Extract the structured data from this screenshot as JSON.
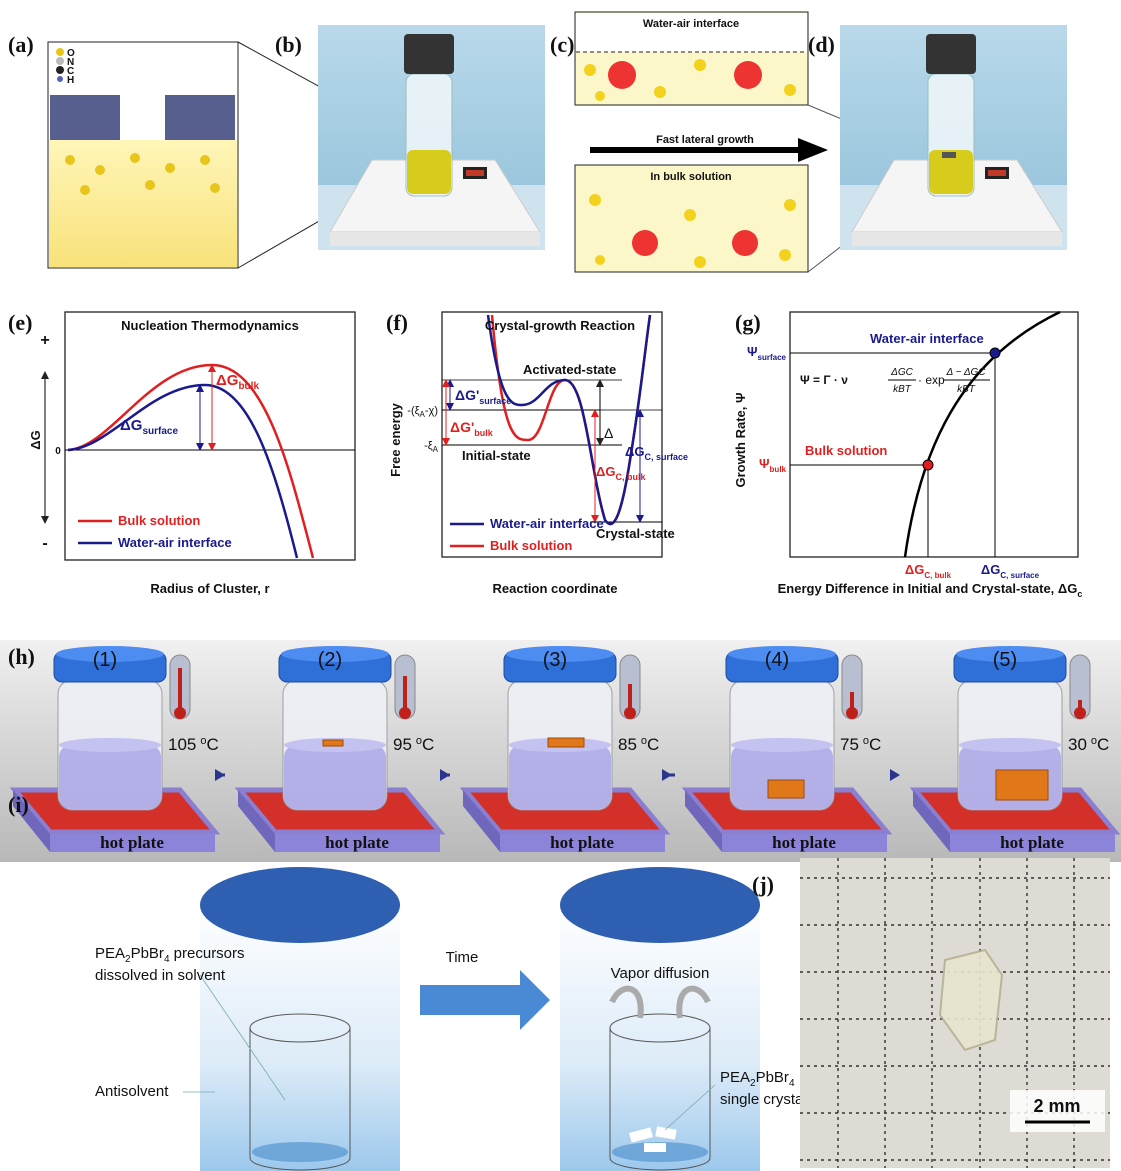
{
  "panels": {
    "a": {
      "label": "(a)",
      "legend": [
        "O",
        "N",
        "C",
        "H"
      ]
    },
    "b": {
      "label": "(b)"
    },
    "c": {
      "label": "(c)",
      "top": "Water-air interface",
      "arrow": "Fast lateral growth",
      "bottom": "In bulk solution"
    },
    "d": {
      "label": "(d)"
    },
    "e": {
      "label": "(e)",
      "title": "Nucleation Thermodynamics",
      "plus": "+",
      "minus": "-",
      "y_axis": "ΔG",
      "zero": "0",
      "dg_bulk": {
        "main": "ΔG",
        "sub": "bulk"
      },
      "dg_surface": {
        "main": "ΔG",
        "sub": "surface"
      },
      "legend": [
        "Bulk solution",
        "Water-air interface"
      ],
      "x_axis": "Radius of Cluster, r"
    },
    "f": {
      "label": "(f)",
      "title": "Crystal-growth Reaction",
      "y_axis": "Free energy",
      "level_high": {
        "main": "-(ξ",
        "sub": "A",
        "tail": "-χ)"
      },
      "level_low": {
        "main": "-ξ",
        "sub": "A"
      },
      "dg_surface": {
        "main": "ΔG'",
        "sub": "surface"
      },
      "dg_bulk": {
        "main": "ΔG'",
        "sub": "bulk"
      },
      "activated": "Activated-state",
      "initial": "Initial-state",
      "crystal": "Crystal-state",
      "delta": "Δ",
      "dgc_surface": {
        "main": "ΔG",
        "sub": "C, surface"
      },
      "dgc_bulk": {
        "main": "ΔG",
        "sub": "C, bulk"
      },
      "legend": [
        "Water-air interface",
        "Bulk solution"
      ],
      "x_axis": "Reaction coordinate"
    },
    "g": {
      "label": "(g)",
      "y_axis": "Growth Rate, Ψ",
      "psi_surface": {
        "main": "Ψ",
        "sub": "surface"
      },
      "psi_bulk": {
        "main": "Ψ",
        "sub": "bulk"
      },
      "water_air": "Water-air interface",
      "bulk": "Bulk solution",
      "formula": {
        "prefix": "Ψ = Γ · ν",
        "num1": "ΔGC",
        "den1": "kBT",
        "mid": "· exp",
        "num2": "Δ − ΔGC",
        "den2": "kBT"
      },
      "dgc_bulk": {
        "main": "ΔG",
        "sub": "C, bulk"
      },
      "dgc_surface": {
        "main": "ΔG",
        "sub": "C, surface"
      },
      "x_axis": {
        "main": "Energy Difference in Initial and Crystal-state, ΔG",
        "sub": "c"
      }
    },
    "h": {
      "label": "(h)",
      "steps": [
        {
          "n": "(1)",
          "temp": "105",
          "deg": "o",
          "unit": "C",
          "plate": "hot plate"
        },
        {
          "n": "(2)",
          "temp": "95",
          "deg": "o",
          "unit": "C",
          "plate": "hot plate"
        },
        {
          "n": "(3)",
          "temp": "85",
          "deg": "o",
          "unit": "C",
          "plate": "hot plate"
        },
        {
          "n": "(4)",
          "temp": "75",
          "deg": "o",
          "unit": "C",
          "plate": "hot plate"
        },
        {
          "n": "(5)",
          "temp": "30",
          "deg": "o",
          "unit": "C",
          "plate": "hot plate"
        }
      ]
    },
    "i": {
      "label": "(i)",
      "precursor": {
        "formula_a": "PEA",
        "sub_a": "2",
        "formula_b": "PbBr",
        "sub_b": "4",
        "rest": " precursors",
        "line2": "dissolved in solvent"
      },
      "antisolvent": "Antisolvent",
      "time": "Time",
      "vapor": "Vapor diffusion",
      "crystals": {
        "formula_a": "PEA",
        "sub_a": "2",
        "formula_b": "PbBr",
        "sub_b": "4",
        "line2": "single crystals"
      }
    },
    "j": {
      "label": "(j)",
      "scale": "2 mm"
    }
  }
}
